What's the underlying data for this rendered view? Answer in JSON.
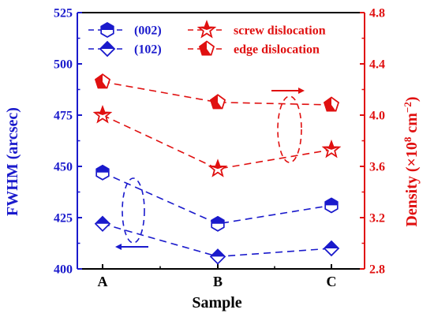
{
  "chart_data": {
    "type": "line",
    "categories": [
      "A",
      "B",
      "C"
    ],
    "xlabel": "Sample",
    "ylabel_left": "FWHM (arcsec)",
    "ylabel_right_prefix": "Density (×10",
    "ylabel_right_exp1": "8",
    "ylabel_right_mid": " cm",
    "ylabel_right_exp2": "−2",
    "ylabel_right_suffix": ")",
    "ylim_left": [
      400,
      525
    ],
    "yticks_left": [
      "400",
      "425",
      "450",
      "475",
      "500",
      "525"
    ],
    "ylim_right": [
      2.8,
      4.8
    ],
    "yticks_right": [
      "2.8",
      "3.2",
      "3.6",
      "4.0",
      "4.4",
      "4.8"
    ],
    "grid": false,
    "legend_position": "top",
    "series": [
      {
        "name": "(002)",
        "axis": "left",
        "marker": "hexagon",
        "color": "#1a1acc",
        "values": [
          447,
          422,
          431
        ]
      },
      {
        "name": "(102)",
        "axis": "left",
        "marker": "diamond",
        "color": "#1a1acc",
        "values": [
          422,
          406,
          410
        ]
      },
      {
        "name": "screw dislocation",
        "axis": "right",
        "marker": "star",
        "color": "#e01010",
        "values": [
          4.0,
          3.58,
          3.73
        ]
      },
      {
        "name": "edge dislocation",
        "axis": "right",
        "marker": "pentagon",
        "color": "#e01010",
        "values": [
          4.26,
          4.1,
          4.08
        ]
      }
    ]
  }
}
